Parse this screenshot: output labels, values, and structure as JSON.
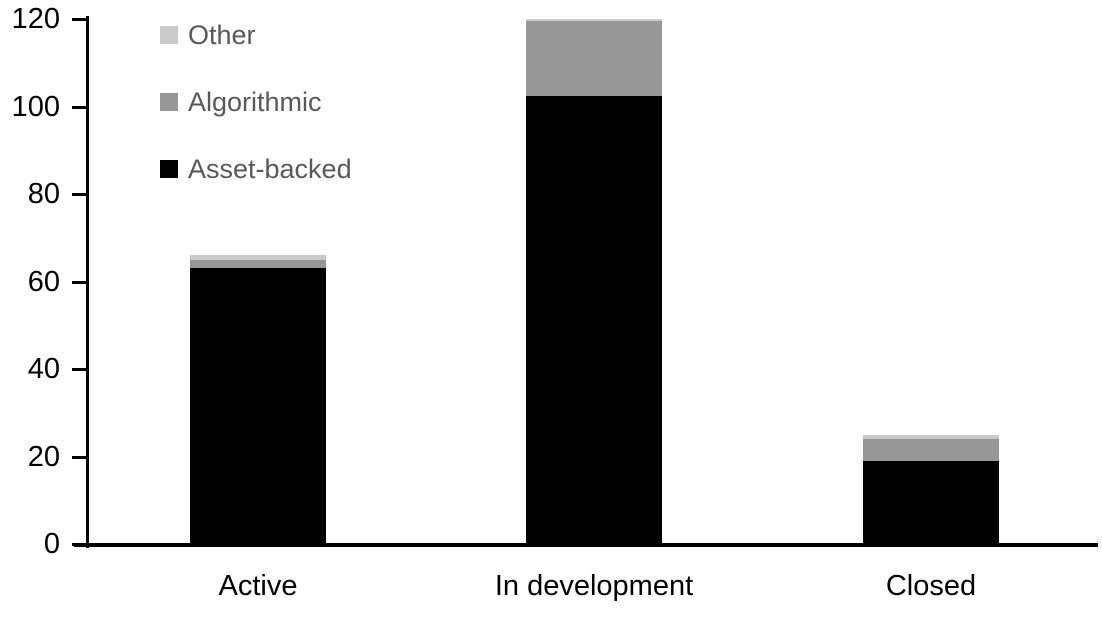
{
  "chart_data": {
    "type": "bar",
    "stacked": true,
    "title": "",
    "xlabel": "",
    "ylabel": "",
    "categories": [
      "Active",
      "In development",
      "Closed"
    ],
    "series": [
      {
        "name": "Asset-backed",
        "color": "#000000",
        "values": [
          63,
          102.5,
          19
        ]
      },
      {
        "name": "Algorithmic",
        "color": "#979797",
        "values": [
          2,
          17,
          5
        ]
      },
      {
        "name": "Other",
        "color": "#c9c9c9",
        "values": [
          1,
          0.5,
          1
        ]
      }
    ],
    "totals": [
      66,
      120,
      25
    ],
    "ylim": [
      0,
      120
    ],
    "yticks": [
      0,
      20,
      40,
      60,
      80,
      100,
      120
    ],
    "legend": {
      "position": "top-left",
      "order": [
        "Other",
        "Algorithmic",
        "Asset-backed"
      ],
      "text_color": "#595959"
    },
    "grid": false,
    "background_color": "#ffffff",
    "axis_color": "#000000"
  }
}
